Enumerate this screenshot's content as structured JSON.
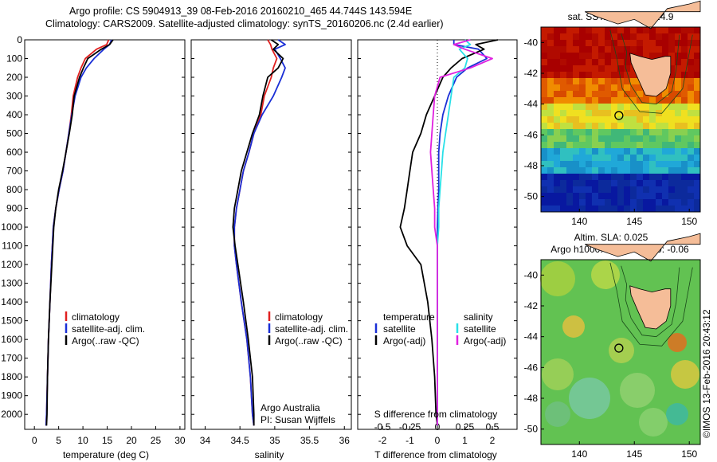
{
  "title_line1": "Argo profile: CS 5904913_39 08-Feb-2016 20160210_465 44.744S 143.594E",
  "title_line2": "Climatology: CARS2009. Satellite-adjusted climatology: synTS_20160206.nc (2.4d earlier)",
  "watermark": "©IMOS 13-Feb-2016 20:43:12",
  "colors": {
    "climatology": "#e02020",
    "satellite": "#1a2fd6",
    "argo": "#000000",
    "sat_diff": "#28e0e8",
    "argo_adj": "#e020e0",
    "coast": "#f5bd98"
  },
  "depth_ticks": [
    "0",
    "100",
    "200",
    "300",
    "400",
    "500",
    "600",
    "700",
    "800",
    "900",
    "1000",
    "1100",
    "1200",
    "1300",
    "1400",
    "1500",
    "1600",
    "1700",
    "1800",
    "1900",
    "2000"
  ],
  "chart_data": [
    {
      "type": "line",
      "name": "temperature-panel",
      "xlabel": "temperature (deg C)",
      "ylabel": "",
      "xlim": [
        -2,
        31
      ],
      "ylim": [
        2080,
        0
      ],
      "xticks": [
        "0",
        "5",
        "10",
        "15",
        "20",
        "25",
        "30"
      ],
      "legend": [
        "climatology",
        "satellite-adj. clim.",
        "Argo(..raw -QC)"
      ],
      "depth": [
        0,
        25,
        50,
        100,
        150,
        200,
        300,
        400,
        500,
        600,
        700,
        800,
        900,
        1000,
        1200,
        1400,
        1600,
        1800,
        2000,
        2060
      ],
      "series": [
        {
          "name": "climatology",
          "values": [
            15.3,
            14.9,
            12.8,
            10.5,
            9.6,
            8.9,
            8.0,
            7.6,
            7.1,
            6.5,
            5.9,
            5.1,
            4.4,
            3.9,
            3.5,
            3.2,
            2.9,
            2.7,
            2.5,
            2.4
          ]
        },
        {
          "name": "satellite-adj. clim.",
          "values": [
            15.9,
            15.5,
            14.3,
            12.3,
            10.7,
            9.6,
            8.4,
            7.7,
            7.1,
            6.5,
            5.9,
            5.1,
            4.4,
            3.9,
            3.5,
            3.2,
            2.9,
            2.7,
            2.5,
            2.4
          ]
        },
        {
          "name": "Argo(..raw -QC)",
          "values": [
            16.2,
            15.5,
            13.8,
            11.0,
            10.1,
            9.3,
            8.2,
            7.8,
            7.2,
            6.5,
            5.8,
            5.0,
            4.4,
            4.0,
            3.6,
            3.2,
            2.9,
            2.7,
            2.6,
            2.5
          ]
        }
      ]
    },
    {
      "type": "line",
      "name": "salinity-panel",
      "xlabel": "salinity",
      "ylabel": "",
      "xlim": [
        33.8,
        36.1
      ],
      "ylim": [
        2080,
        0
      ],
      "xticks": [
        "34",
        "34.5",
        "35",
        "35.5",
        "36"
      ],
      "legend": [
        "climatology",
        "satellite-adj. clim.",
        "Argo(..raw -QC)"
      ],
      "annotation": [
        "Argo Australia",
        "PI: Susan Wijffels"
      ],
      "depth": [
        0,
        25,
        50,
        100,
        150,
        200,
        300,
        400,
        500,
        600,
        700,
        800,
        900,
        1000,
        1100,
        1200,
        1400,
        1600,
        1800,
        2000,
        2060
      ],
      "series": [
        {
          "name": "climatology",
          "values": [
            34.9,
            34.94,
            34.96,
            35.03,
            34.98,
            34.95,
            34.85,
            34.8,
            34.7,
            34.63,
            34.55,
            34.5,
            34.45,
            34.42,
            34.42,
            34.45,
            34.52,
            34.6,
            34.65,
            34.68,
            34.7
          ]
        },
        {
          "name": "satellite-adj. clim.",
          "values": [
            35.05,
            35.15,
            35.0,
            35.08,
            35.15,
            35.1,
            34.98,
            34.82,
            34.7,
            34.63,
            34.55,
            34.5,
            34.45,
            34.42,
            34.42,
            34.45,
            34.52,
            34.6,
            34.65,
            34.68,
            34.7
          ]
        },
        {
          "name": "Argo(..raw -QC)",
          "values": [
            34.95,
            35.05,
            34.98,
            35.12,
            35.05,
            34.9,
            34.83,
            34.78,
            34.68,
            34.6,
            34.52,
            34.47,
            34.42,
            34.4,
            34.43,
            34.47,
            34.55,
            34.62,
            34.68,
            34.7,
            34.7
          ]
        }
      ]
    },
    {
      "type": "line",
      "name": "difference-panel",
      "xlabel": "T difference from climatology",
      "xlim": [
        -2.9,
        2.9
      ],
      "ylim": [
        2080,
        0
      ],
      "xticks": [
        "-2",
        "-1",
        "0",
        "1",
        "2"
      ],
      "top_axis_label": "S difference from climatology",
      "top_ticks": [
        {
          "label": "-0.5",
          "t": -2.0
        },
        {
          "label": "-0.25",
          "t": -1.0
        },
        {
          "label": "0",
          "t": 0.0
        },
        {
          "label": "0.25",
          "t": 1.0
        },
        {
          "label": "0.5",
          "t": 2.0
        }
      ],
      "legend_headers": [
        "temperature",
        "salinity"
      ],
      "legend_left": [
        "satellite",
        "Argo(-adj)"
      ],
      "legend_right": [
        "satellite",
        "Argo(-adj)"
      ],
      "depth": [
        0,
        25,
        50,
        100,
        150,
        200,
        300,
        400,
        500,
        600,
        700,
        800,
        900,
        1000,
        1100,
        1200,
        1400,
        1600,
        1800,
        2000,
        2060
      ],
      "series": [
        {
          "name": "temperature satellite",
          "values": [
            0.6,
            0.6,
            1.5,
            1.8,
            1.1,
            0.7,
            0.4,
            0.2,
            0.1,
            0.05,
            0.05,
            0.05,
            0.02,
            0.0,
            0.0,
            0.0,
            0.0,
            0.0,
            0.0,
            0.0,
            0.0
          ]
        },
        {
          "name": "temperature Argo(-adj)",
          "values": [
            2.2,
            1.4,
            1.7,
            0.9,
            0.5,
            0.2,
            -0.1,
            -0.4,
            -0.6,
            -0.9,
            -1.0,
            -1.1,
            -1.2,
            -1.35,
            -1.1,
            -0.6,
            -0.35,
            -0.2,
            -0.1,
            -0.05,
            0.0
          ]
        },
        {
          "name": "salinity satellite",
          "values": [
            1.0,
            1.2,
            0.8,
            1.1,
            1.0,
            0.6,
            0.5,
            0.4,
            0.3,
            0.2,
            0.15,
            0.1,
            0.05,
            0.05,
            0.0,
            0.0,
            0.0,
            0.0,
            0.0,
            0.0,
            0.0
          ]
        },
        {
          "name": "salinity Argo(-adj)",
          "values": [
            1.2,
            0.6,
            1.0,
            2.0,
            1.2,
            0.1,
            -0.1,
            -0.15,
            -0.2,
            -0.25,
            -0.2,
            -0.15,
            -0.1,
            -0.1,
            0.0,
            0.0,
            0.0,
            0.0,
            0.0,
            0.0,
            0.0
          ]
        }
      ]
    },
    {
      "type": "heatmap",
      "name": "sst-map",
      "title": "sat. SST: 15.8  Argo: 14.9",
      "xlim": [
        136.5,
        151
      ],
      "ylim": [
        -51,
        -39
      ],
      "xticks": [
        "140",
        "145",
        "150"
      ],
      "yticks": [
        "-40",
        "-42",
        "-44",
        "-46",
        "-48",
        "-50"
      ],
      "argo_position": {
        "lon": 143.594,
        "lat": -44.744
      },
      "color_bands": [
        {
          "lat_max": -39,
          "lat_min": -42.5,
          "colors": [
            "#a80000",
            "#c41a00",
            "#b00a00"
          ]
        },
        {
          "lat_max": -42.5,
          "lat_min": -44,
          "colors": [
            "#e05a00",
            "#f08c00",
            "#d84a00"
          ]
        },
        {
          "lat_max": -44,
          "lat_min": -45.5,
          "colors": [
            "#f0e020",
            "#c0e040",
            "#e8c020"
          ]
        },
        {
          "lat_max": -45.5,
          "lat_min": -47,
          "colors": [
            "#60c860",
            "#40b878",
            "#88d050"
          ]
        },
        {
          "lat_max": -47,
          "lat_min": -48.5,
          "colors": [
            "#20a8d8",
            "#1890c8",
            "#30c0c0"
          ]
        },
        {
          "lat_max": -48.5,
          "lat_min": -51,
          "colors": [
            "#0c2a9c",
            "#1030b0",
            "#0818a0"
          ]
        }
      ]
    },
    {
      "type": "heatmap",
      "name": "sla-map",
      "title_line1": "Altim. SLA: 0.025",
      "title_line2": "Argo h1000: -0.016 h2000: -0.06",
      "xlim": [
        136.5,
        151
      ],
      "ylim": [
        -51,
        -39
      ],
      "xticks": [
        "140",
        "145",
        "150"
      ],
      "yticks": [
        "-40",
        "-42",
        "-44",
        "-46",
        "-48",
        "-50"
      ],
      "argo_position": {
        "lon": 143.594,
        "lat": -44.744
      },
      "background": "#62c252"
    }
  ]
}
